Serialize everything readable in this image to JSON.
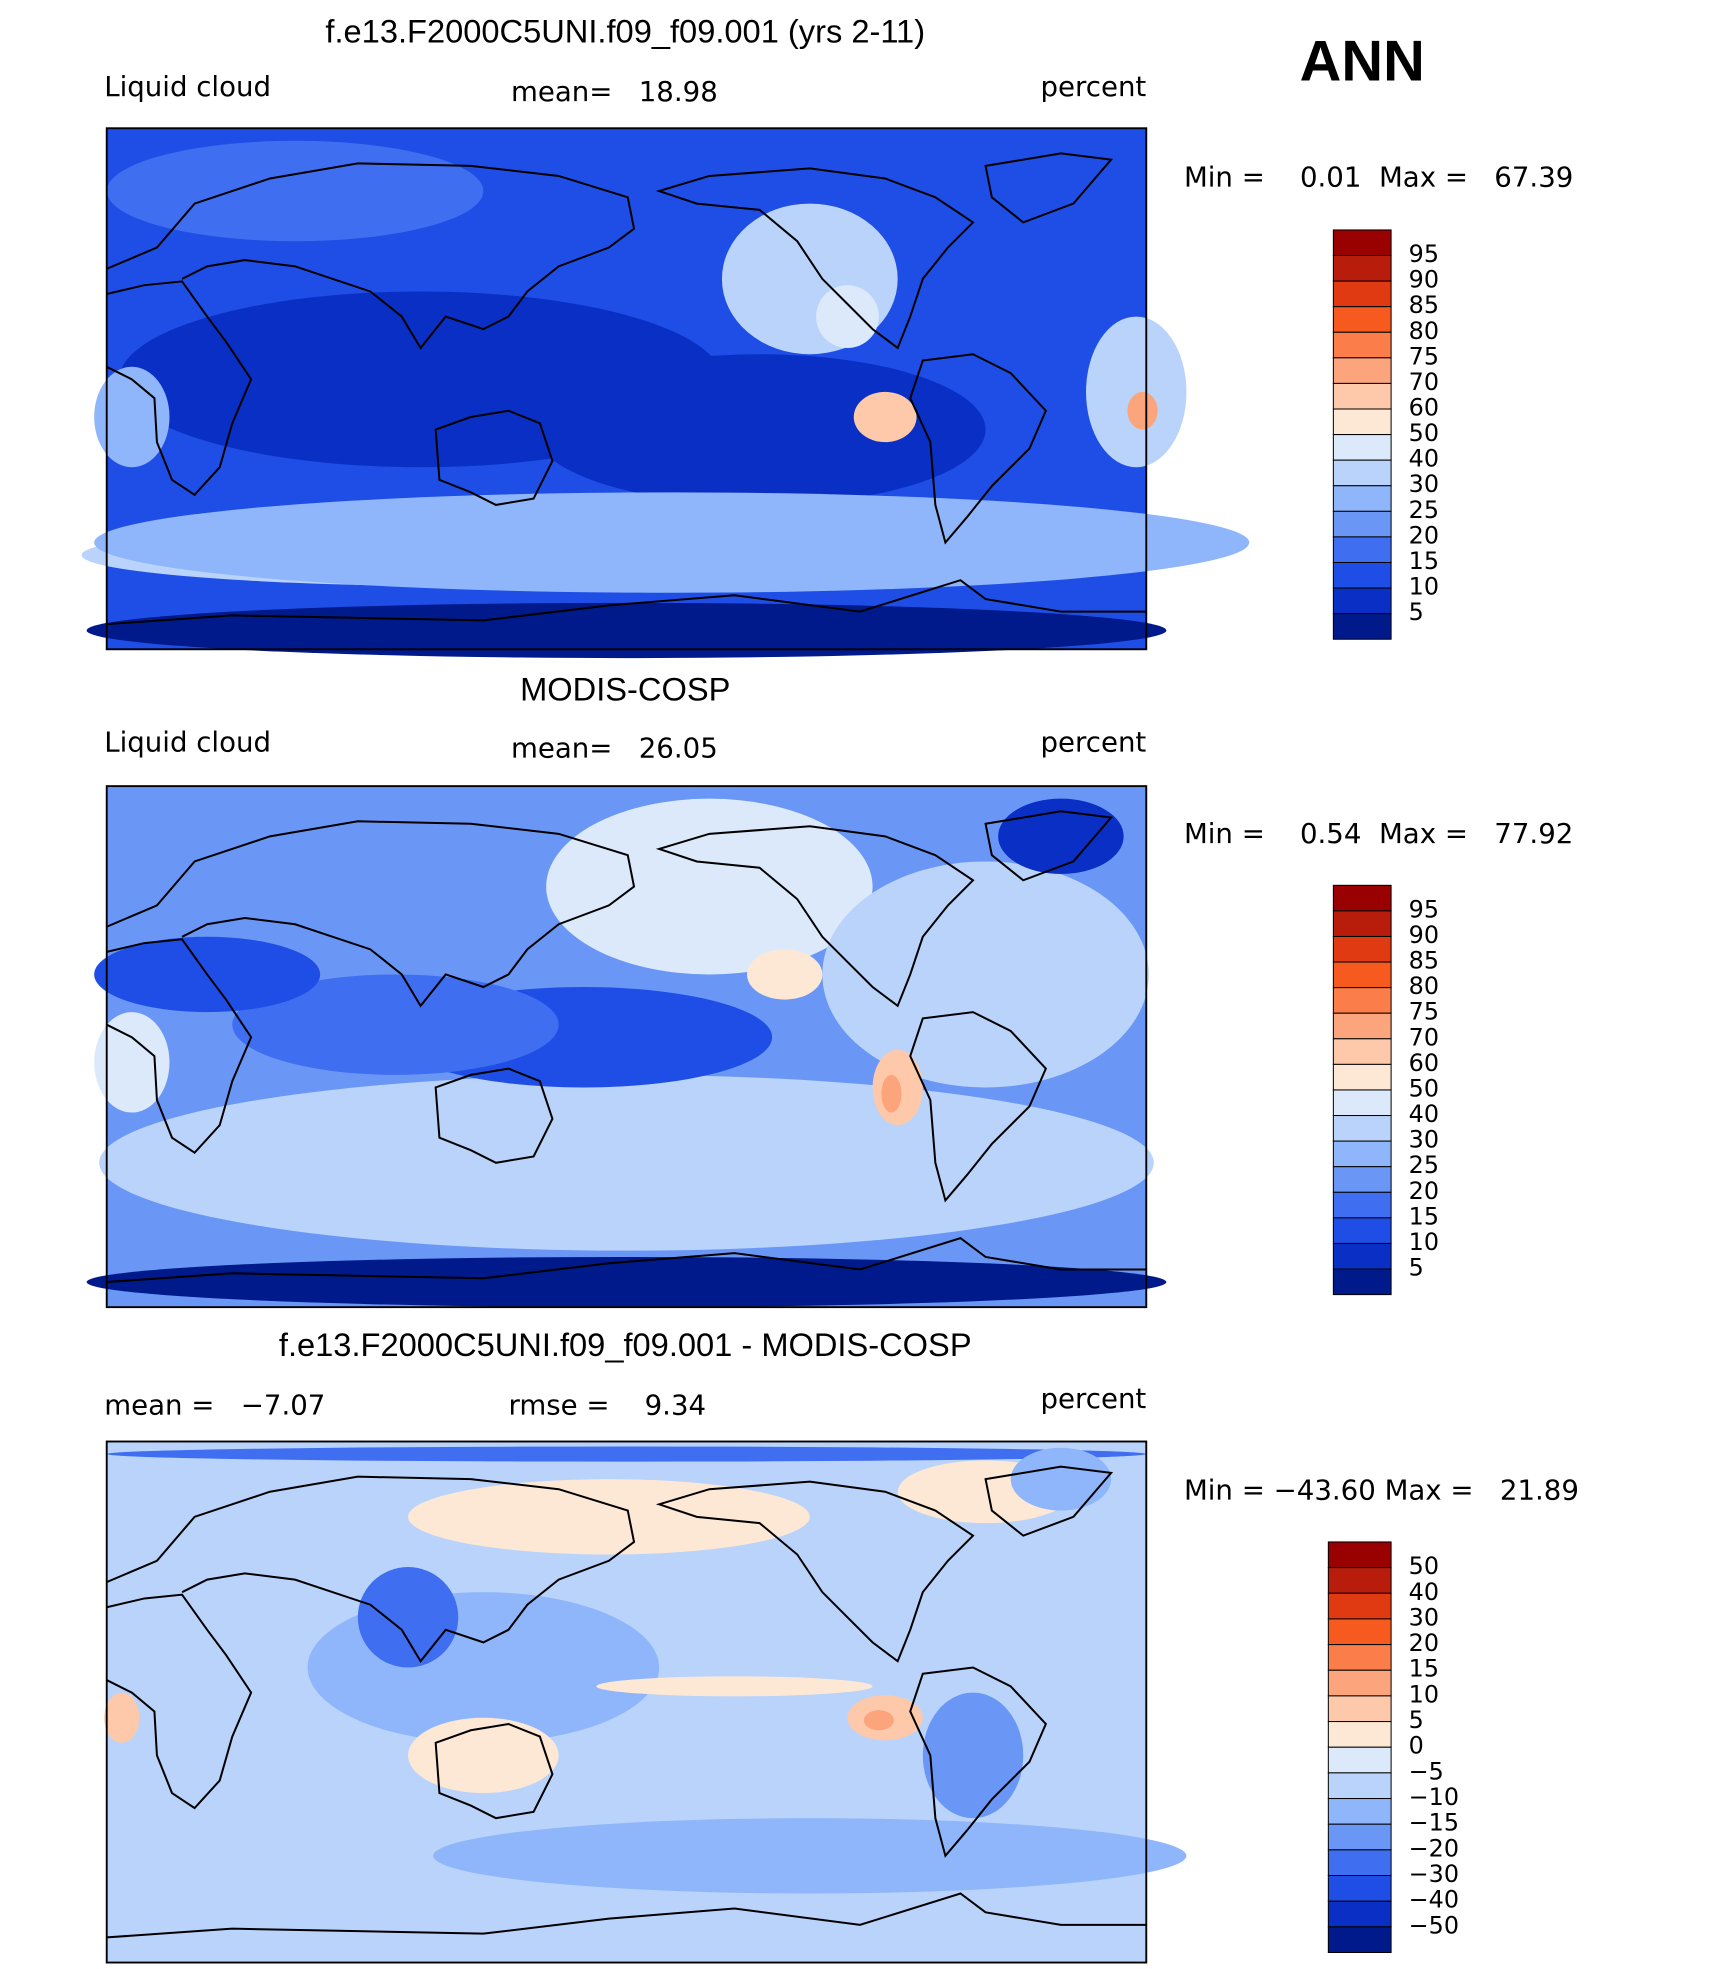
{
  "season": "ANN",
  "panels": [
    {
      "title": "f.e13.F2000C5UNI.f09_f09.001 (yrs 2-11)",
      "left_label": "Liquid cloud",
      "center_label": "mean=   18.98",
      "right_label": "percent",
      "min_max": "Min =    0.01  Max =   67.39",
      "colorbar": {
        "labels": [
          "95",
          "90",
          "85",
          "80",
          "75",
          "70",
          "60",
          "50",
          "40",
          "30",
          "25",
          "20",
          "15",
          "10",
          "5"
        ],
        "colors": [
          "#990000",
          "#b81d0c",
          "#e03a12",
          "#f75a1e",
          "#fb7d4a",
          "#fca47c",
          "#fdc9aa",
          "#fde8d6",
          "#dce9fb",
          "#b9d3fb",
          "#8fb6fa",
          "#6a97f5",
          "#3f6ef0",
          "#1f4ee6",
          "#0a2fc4",
          "#001a8c"
        ]
      }
    },
    {
      "title": "MODIS-COSP",
      "left_label": "Liquid cloud",
      "center_label": "mean=   26.05",
      "right_label": "percent",
      "min_max": "Min =    0.54  Max =   77.92",
      "colorbar": {
        "labels": [
          "95",
          "90",
          "85",
          "80",
          "75",
          "70",
          "60",
          "50",
          "40",
          "30",
          "25",
          "20",
          "15",
          "10",
          "5"
        ],
        "colors": [
          "#990000",
          "#b81d0c",
          "#e03a12",
          "#f75a1e",
          "#fb7d4a",
          "#fca47c",
          "#fdc9aa",
          "#fde8d6",
          "#dce9fb",
          "#b9d3fb",
          "#8fb6fa",
          "#6a97f5",
          "#3f6ef0",
          "#1f4ee6",
          "#0a2fc4",
          "#001a8c"
        ]
      }
    },
    {
      "title": "f.e13.F2000C5UNI.f09_f09.001 - MODIS-COSP",
      "left_label": "mean =   −7.07",
      "center_label": "rmse =    9.34",
      "right_label": "percent",
      "min_max": "Min = −43.60 Max =   21.89",
      "colorbar": {
        "labels": [
          "50",
          "40",
          "30",
          "20",
          "15",
          "10",
          "5",
          "0",
          "−5",
          "−10",
          "−15",
          "−20",
          "−30",
          "−40",
          "−50"
        ],
        "colors": [
          "#990000",
          "#b81d0c",
          "#e03a12",
          "#f75a1e",
          "#fb7d4a",
          "#fca47c",
          "#fdc9aa",
          "#fde8d6",
          "#dce9fb",
          "#b9d3fb",
          "#8fb6fa",
          "#6a97f5",
          "#3f6ef0",
          "#1f4ee6",
          "#0a2fc4",
          "#001a8c"
        ]
      }
    }
  ]
}
